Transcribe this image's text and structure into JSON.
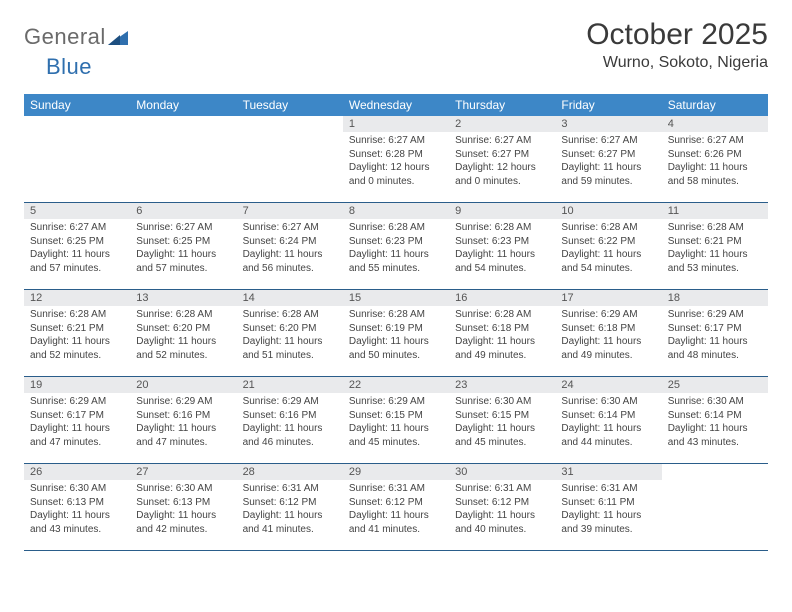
{
  "logo": {
    "word1": "General",
    "word2": "Blue"
  },
  "title": "October 2025",
  "location": "Wurno, Sokoto, Nigeria",
  "colors": {
    "header_bg": "#3d87c7",
    "header_text": "#ffffff",
    "daynum_bg": "#e9eaec",
    "week_border": "#2a5d8a",
    "logo_gray": "#6a6a6a",
    "logo_blue": "#2f6fae",
    "body_text": "#444444"
  },
  "dow": [
    "Sunday",
    "Monday",
    "Tuesday",
    "Wednesday",
    "Thursday",
    "Friday",
    "Saturday"
  ],
  "weeks": [
    [
      {
        "n": "",
        "empty": true
      },
      {
        "n": "",
        "empty": true
      },
      {
        "n": "",
        "empty": true
      },
      {
        "n": "1",
        "sr": "Sunrise: 6:27 AM",
        "ss": "Sunset: 6:28 PM",
        "dl1": "Daylight: 12 hours",
        "dl2": "and 0 minutes."
      },
      {
        "n": "2",
        "sr": "Sunrise: 6:27 AM",
        "ss": "Sunset: 6:27 PM",
        "dl1": "Daylight: 12 hours",
        "dl2": "and 0 minutes."
      },
      {
        "n": "3",
        "sr": "Sunrise: 6:27 AM",
        "ss": "Sunset: 6:27 PM",
        "dl1": "Daylight: 11 hours",
        "dl2": "and 59 minutes."
      },
      {
        "n": "4",
        "sr": "Sunrise: 6:27 AM",
        "ss": "Sunset: 6:26 PM",
        "dl1": "Daylight: 11 hours",
        "dl2": "and 58 minutes."
      }
    ],
    [
      {
        "n": "5",
        "sr": "Sunrise: 6:27 AM",
        "ss": "Sunset: 6:25 PM",
        "dl1": "Daylight: 11 hours",
        "dl2": "and 57 minutes."
      },
      {
        "n": "6",
        "sr": "Sunrise: 6:27 AM",
        "ss": "Sunset: 6:25 PM",
        "dl1": "Daylight: 11 hours",
        "dl2": "and 57 minutes."
      },
      {
        "n": "7",
        "sr": "Sunrise: 6:27 AM",
        "ss": "Sunset: 6:24 PM",
        "dl1": "Daylight: 11 hours",
        "dl2": "and 56 minutes."
      },
      {
        "n": "8",
        "sr": "Sunrise: 6:28 AM",
        "ss": "Sunset: 6:23 PM",
        "dl1": "Daylight: 11 hours",
        "dl2": "and 55 minutes."
      },
      {
        "n": "9",
        "sr": "Sunrise: 6:28 AM",
        "ss": "Sunset: 6:23 PM",
        "dl1": "Daylight: 11 hours",
        "dl2": "and 54 minutes."
      },
      {
        "n": "10",
        "sr": "Sunrise: 6:28 AM",
        "ss": "Sunset: 6:22 PM",
        "dl1": "Daylight: 11 hours",
        "dl2": "and 54 minutes."
      },
      {
        "n": "11",
        "sr": "Sunrise: 6:28 AM",
        "ss": "Sunset: 6:21 PM",
        "dl1": "Daylight: 11 hours",
        "dl2": "and 53 minutes."
      }
    ],
    [
      {
        "n": "12",
        "sr": "Sunrise: 6:28 AM",
        "ss": "Sunset: 6:21 PM",
        "dl1": "Daylight: 11 hours",
        "dl2": "and 52 minutes."
      },
      {
        "n": "13",
        "sr": "Sunrise: 6:28 AM",
        "ss": "Sunset: 6:20 PM",
        "dl1": "Daylight: 11 hours",
        "dl2": "and 52 minutes."
      },
      {
        "n": "14",
        "sr": "Sunrise: 6:28 AM",
        "ss": "Sunset: 6:20 PM",
        "dl1": "Daylight: 11 hours",
        "dl2": "and 51 minutes."
      },
      {
        "n": "15",
        "sr": "Sunrise: 6:28 AM",
        "ss": "Sunset: 6:19 PM",
        "dl1": "Daylight: 11 hours",
        "dl2": "and 50 minutes."
      },
      {
        "n": "16",
        "sr": "Sunrise: 6:28 AM",
        "ss": "Sunset: 6:18 PM",
        "dl1": "Daylight: 11 hours",
        "dl2": "and 49 minutes."
      },
      {
        "n": "17",
        "sr": "Sunrise: 6:29 AM",
        "ss": "Sunset: 6:18 PM",
        "dl1": "Daylight: 11 hours",
        "dl2": "and 49 minutes."
      },
      {
        "n": "18",
        "sr": "Sunrise: 6:29 AM",
        "ss": "Sunset: 6:17 PM",
        "dl1": "Daylight: 11 hours",
        "dl2": "and 48 minutes."
      }
    ],
    [
      {
        "n": "19",
        "sr": "Sunrise: 6:29 AM",
        "ss": "Sunset: 6:17 PM",
        "dl1": "Daylight: 11 hours",
        "dl2": "and 47 minutes."
      },
      {
        "n": "20",
        "sr": "Sunrise: 6:29 AM",
        "ss": "Sunset: 6:16 PM",
        "dl1": "Daylight: 11 hours",
        "dl2": "and 47 minutes."
      },
      {
        "n": "21",
        "sr": "Sunrise: 6:29 AM",
        "ss": "Sunset: 6:16 PM",
        "dl1": "Daylight: 11 hours",
        "dl2": "and 46 minutes."
      },
      {
        "n": "22",
        "sr": "Sunrise: 6:29 AM",
        "ss": "Sunset: 6:15 PM",
        "dl1": "Daylight: 11 hours",
        "dl2": "and 45 minutes."
      },
      {
        "n": "23",
        "sr": "Sunrise: 6:30 AM",
        "ss": "Sunset: 6:15 PM",
        "dl1": "Daylight: 11 hours",
        "dl2": "and 45 minutes."
      },
      {
        "n": "24",
        "sr": "Sunrise: 6:30 AM",
        "ss": "Sunset: 6:14 PM",
        "dl1": "Daylight: 11 hours",
        "dl2": "and 44 minutes."
      },
      {
        "n": "25",
        "sr": "Sunrise: 6:30 AM",
        "ss": "Sunset: 6:14 PM",
        "dl1": "Daylight: 11 hours",
        "dl2": "and 43 minutes."
      }
    ],
    [
      {
        "n": "26",
        "sr": "Sunrise: 6:30 AM",
        "ss": "Sunset: 6:13 PM",
        "dl1": "Daylight: 11 hours",
        "dl2": "and 43 minutes."
      },
      {
        "n": "27",
        "sr": "Sunrise: 6:30 AM",
        "ss": "Sunset: 6:13 PM",
        "dl1": "Daylight: 11 hours",
        "dl2": "and 42 minutes."
      },
      {
        "n": "28",
        "sr": "Sunrise: 6:31 AM",
        "ss": "Sunset: 6:12 PM",
        "dl1": "Daylight: 11 hours",
        "dl2": "and 41 minutes."
      },
      {
        "n": "29",
        "sr": "Sunrise: 6:31 AM",
        "ss": "Sunset: 6:12 PM",
        "dl1": "Daylight: 11 hours",
        "dl2": "and 41 minutes."
      },
      {
        "n": "30",
        "sr": "Sunrise: 6:31 AM",
        "ss": "Sunset: 6:12 PM",
        "dl1": "Daylight: 11 hours",
        "dl2": "and 40 minutes."
      },
      {
        "n": "31",
        "sr": "Sunrise: 6:31 AM",
        "ss": "Sunset: 6:11 PM",
        "dl1": "Daylight: 11 hours",
        "dl2": "and 39 minutes."
      },
      {
        "n": "",
        "empty": true
      }
    ]
  ]
}
